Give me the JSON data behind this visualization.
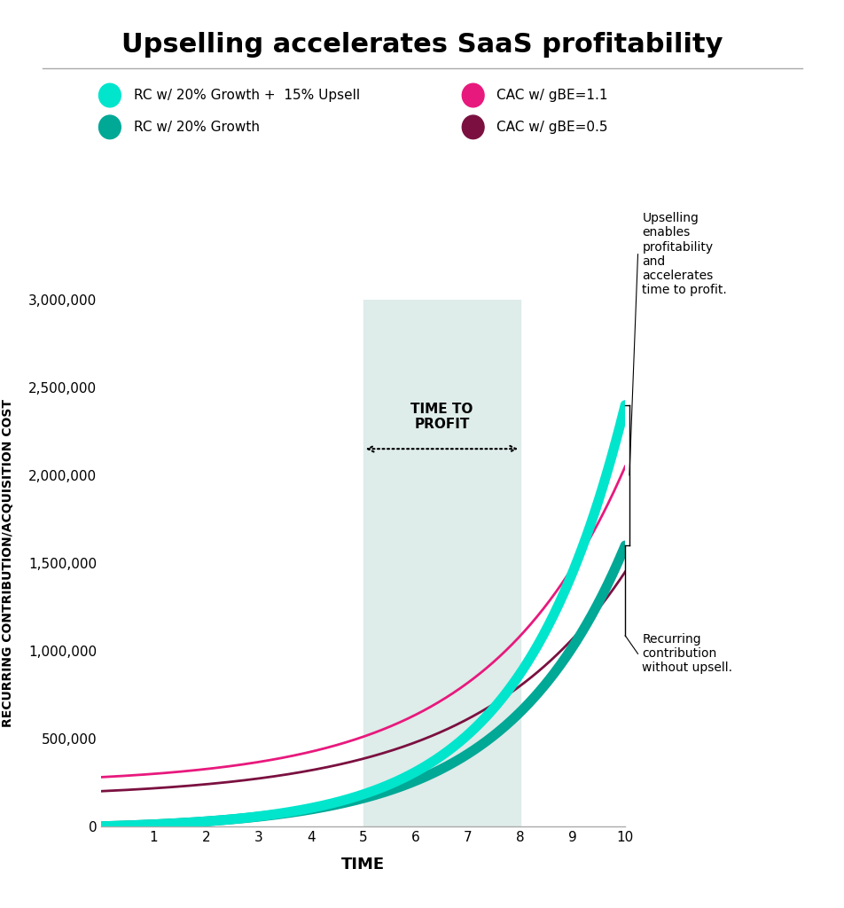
{
  "title": "Upselling accelerates SaaS profitability",
  "xlabel": "TIME",
  "ylabel": "RECURRING CONTRIBUTION/ACQUISITION COST",
  "background_color": "#ffffff",
  "shaded_region": [
    5,
    8
  ],
  "shaded_color": "#deecea",
  "x_ticks": [
    1,
    2,
    3,
    4,
    5,
    6,
    7,
    8,
    9,
    10
  ],
  "ylim": [
    0,
    3000000
  ],
  "yticks": [
    0,
    500000,
    1000000,
    1500000,
    2000000,
    2500000,
    3000000
  ],
  "ytick_labels": [
    "0",
    "500,000",
    "1,000,000",
    "1,500,000",
    "2,000,000",
    "2,500,000",
    "3,000,000"
  ],
  "rc_upsell_color": "#00e5cc",
  "rc_growth_color": "#00a896",
  "cac_gbe11_color": "#e8197d",
  "cac_gbe05_color": "#7b1040",
  "legend": [
    {
      "label": "RC w/ 20% Growth +  15% Upsell",
      "color": "#00e5cc"
    },
    {
      "label": "RC w/ 20% Growth",
      "color": "#00a896"
    },
    {
      "label": "CAC w/ gBE=1.1",
      "color": "#e8197d"
    },
    {
      "label": "CAC w/ gBE=0.5",
      "color": "#7b1040"
    }
  ],
  "annotation_upsell": "Upselling\nenables\nprofitability\nand\naccelerates\ntime to profit.",
  "annotation_rc": "Recurring\ncontribution\nwithout upsell.",
  "time_to_profit_label": "TIME TO\nPROFIT",
  "time_to_profit_x": [
    5,
    8
  ]
}
